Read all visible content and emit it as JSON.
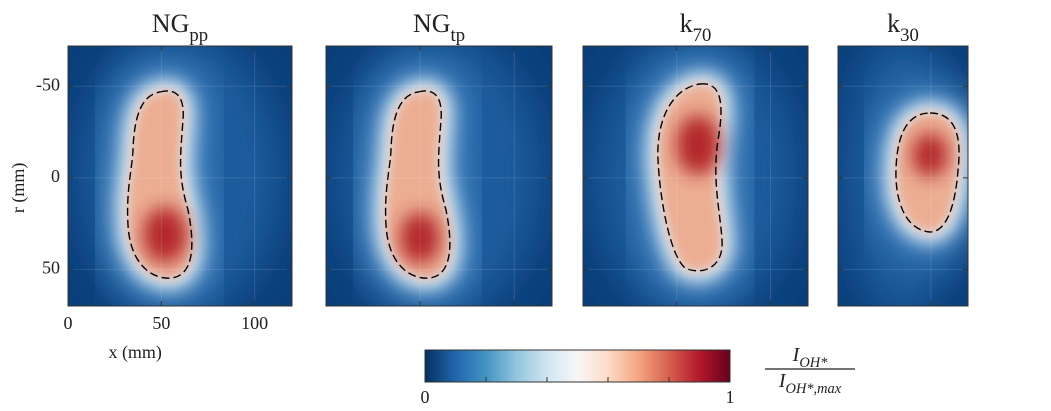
{
  "chart_data": [
    {
      "type": "heatmap",
      "title": "NG",
      "title_subscript": "pp",
      "xlabel": "x (mm)",
      "ylabel": "r (mm)",
      "xlim": [
        0,
        120
      ],
      "xticks": [
        0,
        50,
        100
      ],
      "ylim": [
        -72,
        70
      ],
      "yticks": [
        -50,
        0,
        50
      ],
      "tick_labels": true
    },
    {
      "type": "heatmap",
      "title": "NG",
      "title_subscript": "tp",
      "xlim": [
        0,
        120
      ],
      "xticks": [
        0,
        50,
        100
      ],
      "ylim": [
        -72,
        70
      ],
      "yticks": [
        -50,
        0,
        50
      ],
      "tick_labels": false
    },
    {
      "type": "heatmap",
      "title": "k",
      "title_subscript": "70",
      "xlim": [
        0,
        120
      ],
      "xticks": [
        0,
        50,
        100
      ],
      "ylim": [
        -72,
        70
      ],
      "yticks": [
        -50,
        0,
        50
      ],
      "tick_labels": false
    },
    {
      "type": "heatmap",
      "title": "k",
      "title_subscript": "30",
      "xlim": [
        0,
        70
      ],
      "xticks": [
        0,
        50
      ],
      "ylim": [
        -72,
        70
      ],
      "yticks": [
        -50,
        0,
        50
      ],
      "tick_labels": false
    }
  ],
  "colorbar": {
    "colors": [
      "#053061",
      "#2166ac",
      "#4393c3",
      "#92c5de",
      "#d1e5f0",
      "#f7f7f7",
      "#fddbc7",
      "#f4a582",
      "#d6604d",
      "#b2182b",
      "#67001f"
    ],
    "ticks": [
      0,
      1
    ],
    "minor_ticks": [
      0.2,
      0.4,
      0.6,
      0.8
    ],
    "label": {
      "numerator": "I",
      "numerator_subscript": "OH*",
      "denominator": "I",
      "denominator_subscript": "OH*,max"
    }
  }
}
